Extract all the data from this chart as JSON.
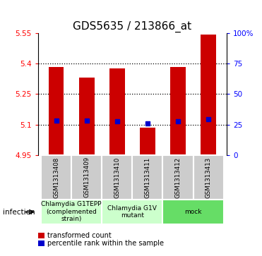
{
  "title": "GDS5635 / 213866_at",
  "samples": [
    "GSM1313408",
    "GSM1313409",
    "GSM1313410",
    "GSM1313411",
    "GSM1313412",
    "GSM1313413"
  ],
  "bar_bottom": 4.95,
  "bar_top": [
    5.385,
    5.33,
    5.375,
    5.085,
    5.385,
    5.545
  ],
  "percentile_y": [
    5.12,
    5.12,
    5.115,
    5.105,
    5.115,
    5.125
  ],
  "ylim": [
    4.95,
    5.55
  ],
  "yticks": [
    4.95,
    5.1,
    5.25,
    5.4,
    5.55
  ],
  "ytick_labels": [
    "4.95",
    "5.1",
    "5.25",
    "5.4",
    "5.55"
  ],
  "y2ticks_pct": [
    0,
    25,
    50,
    75,
    100
  ],
  "y2tick_labels": [
    "0",
    "25",
    "50",
    "75",
    "100%"
  ],
  "dotted_lines": [
    5.1,
    5.25,
    5.4
  ],
  "bar_color": "#cc0000",
  "percentile_color": "#0000cc",
  "group_spans": [
    {
      "start": 0,
      "end": 2,
      "label": "Chlamydia G1TEPP\n(complemented\nstrain)",
      "color": "#ccffcc"
    },
    {
      "start": 2,
      "end": 4,
      "label": "Chlamydia G1V\nmutant",
      "color": "#ccffcc"
    },
    {
      "start": 4,
      "end": 6,
      "label": "mock",
      "color": "#66dd66"
    }
  ],
  "infection_label": "infection",
  "x_label_bg": "#cccccc",
  "title_fontsize": 11,
  "legend_items": [
    {
      "color": "#cc0000",
      "label": "transformed count"
    },
    {
      "color": "#0000cc",
      "label": "percentile rank within the sample"
    }
  ]
}
